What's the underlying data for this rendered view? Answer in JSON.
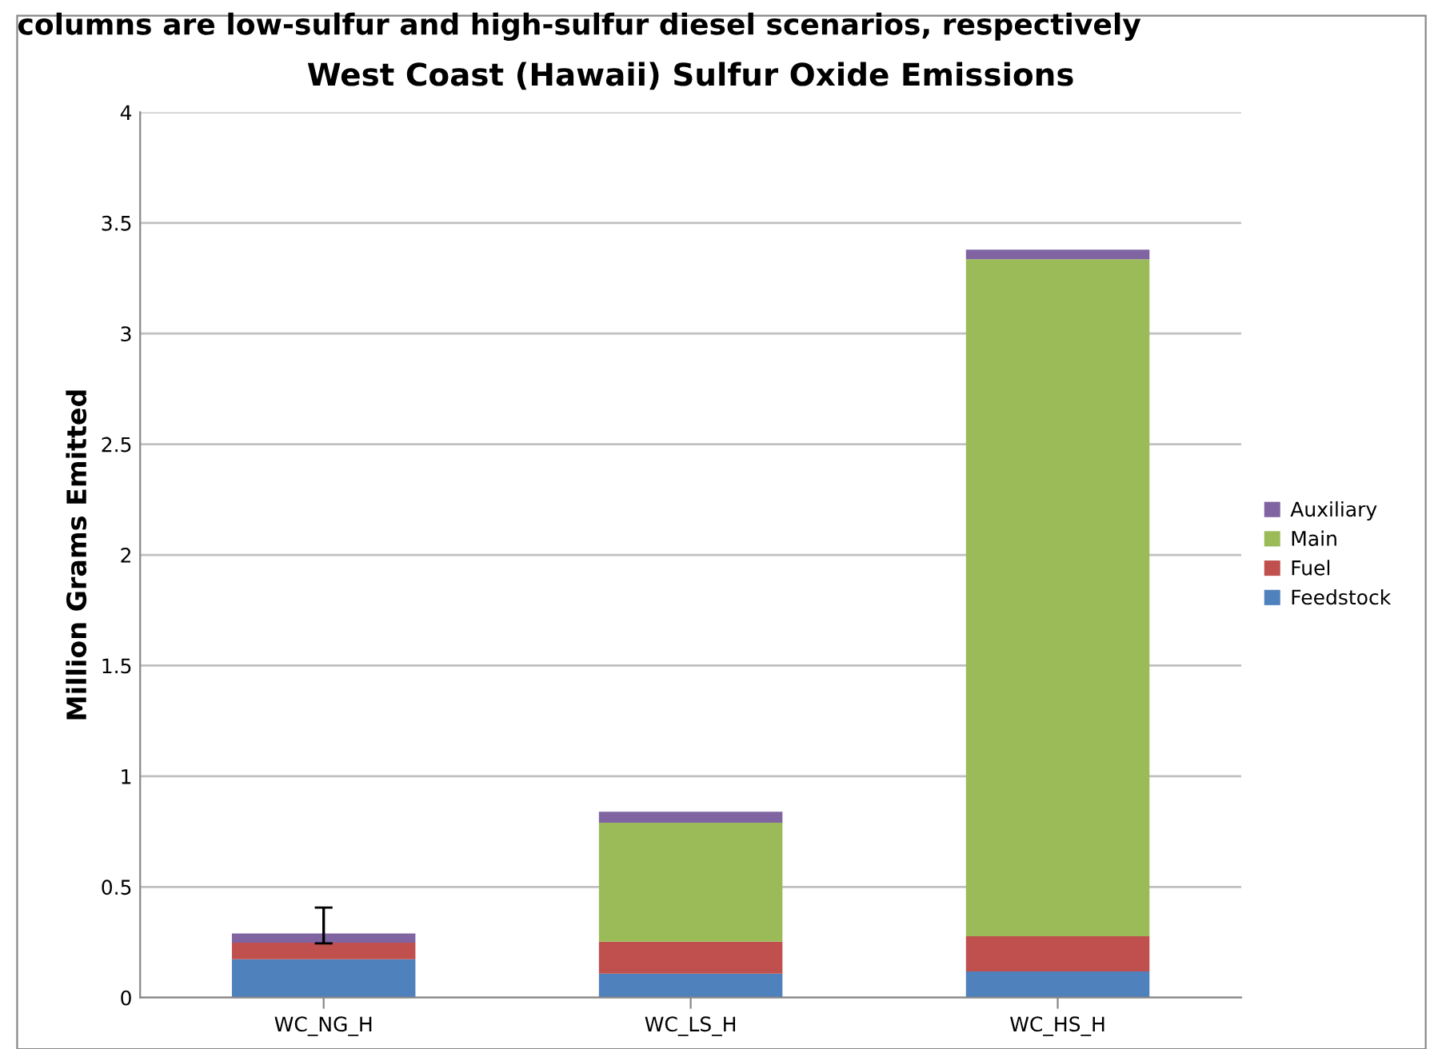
{
  "chart_data": {
    "type": "bar",
    "stacked": true,
    "title": "West Coast (Hawaii) Sulfur Oxide Emissions",
    "ylabel": "Million Grams Emitted",
    "annotations": [
      "columns are low-sulfur and high-sulfur diesel scenarios, respectively"
    ],
    "categories": [
      "WC_NG_H",
      "WC_LS_H",
      "WC_HS_H"
    ],
    "series": [
      {
        "name": "Feedstock",
        "color": "#4f81bd",
        "values": [
          0.173,
          0.108,
          0.118
        ]
      },
      {
        "name": "Fuel",
        "color": "#c0504d",
        "values": [
          0.075,
          0.145,
          0.159
        ]
      },
      {
        "name": "Main",
        "color": "#9bbb59",
        "values": [
          0,
          0.537,
          3.059
        ],
        "errors": [
          [
            0.245,
            0.407
          ],
          null,
          null
        ]
      },
      {
        "name": "Auxiliary",
        "color": "#8064a2",
        "values": [
          0.042,
          0.05,
          0.043
        ]
      }
    ],
    "ylim": [
      0,
      4
    ],
    "yticks": [
      0,
      0.5,
      1,
      1.5,
      2,
      2.5,
      3,
      3.5,
      4
    ],
    "grid": "y",
    "legend": "right"
  }
}
